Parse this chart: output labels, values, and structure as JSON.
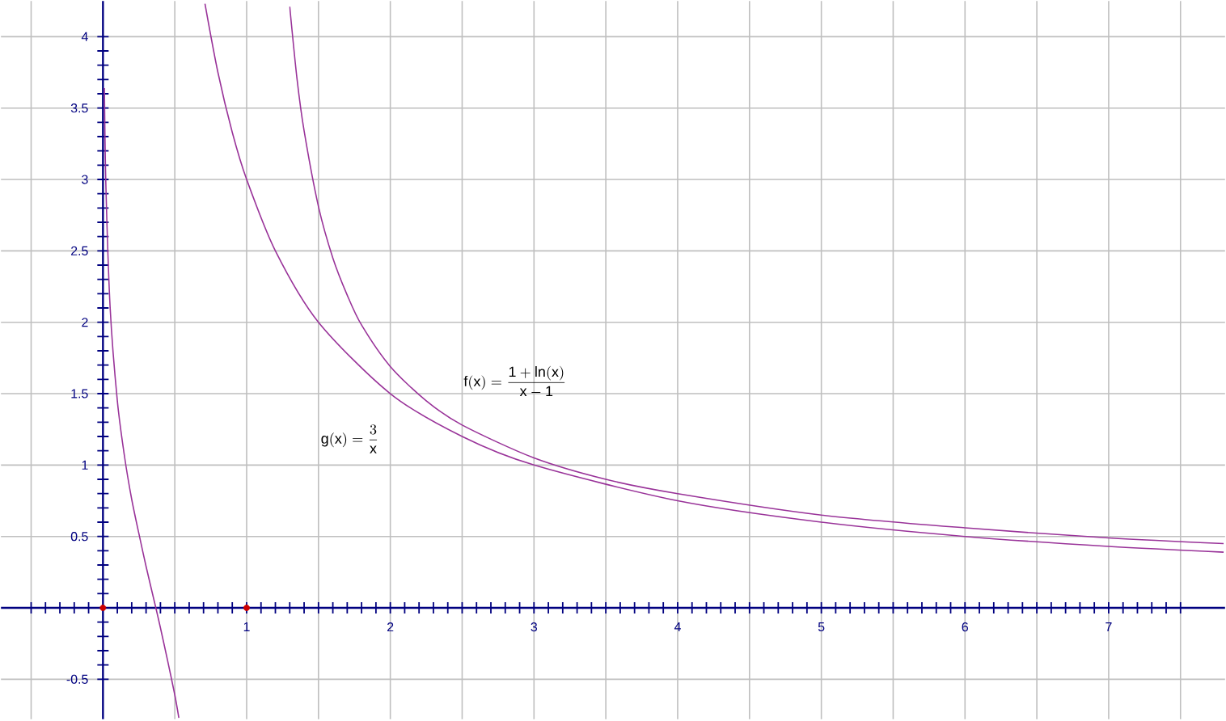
{
  "chart_data": {
    "type": "line",
    "series": [
      {
        "color": "#993399",
        "x": [
          0.01,
          0.02,
          0.05,
          0.1,
          0.15,
          0.2,
          0.25,
          0.3,
          0.368,
          0.4,
          0.45,
          0.5,
          0.528
        ],
        "values": [
          3.64,
          2.97,
          2.1,
          1.45,
          1.06,
          0.76,
          0.52,
          0.29,
          0,
          -0.14,
          -0.37,
          -0.61,
          -0.77
        ]
      },
      {
        "color": "#993399",
        "x": [
          1.3,
          1.35,
          1.4,
          1.5,
          1.6,
          1.7,
          1.8,
          2,
          2.25,
          2.5,
          3,
          3.5,
          4,
          5,
          6,
          7,
          7.8
        ],
        "values": [
          4.21,
          3.71,
          3.34,
          2.81,
          2.45,
          2.19,
          1.98,
          1.69,
          1.45,
          1.28,
          1.05,
          0.9,
          0.8,
          0.65,
          0.56,
          0.49,
          0.45
        ]
      },
      {
        "color": "#993399",
        "x": [
          0.71,
          0.8,
          0.9,
          1,
          1.2,
          1.5,
          2,
          2.5,
          3,
          4,
          5,
          6,
          7,
          7.8
        ],
        "values": [
          4.23,
          3.75,
          3.33,
          3,
          2.5,
          2,
          1.5,
          1.2,
          1,
          0.75,
          0.6,
          0.5,
          0.43,
          0.39
        ]
      },
      {
        "type": "scatter",
        "marker": "circle",
        "color": "#cc0000",
        "x": [
          0,
          1
        ],
        "values": [
          0,
          0
        ]
      }
    ],
    "xlim": [
      -0.71,
      7.81
    ],
    "ylim": [
      -0.78,
      4.25
    ],
    "xticks": [
      {
        "value": -0.5,
        "label": null
      },
      {
        "value": 0,
        "label": null
      },
      {
        "value": 0.5,
        "label": null
      },
      1,
      {
        "value": 1.5,
        "label": null
      },
      2,
      {
        "value": 2.5,
        "label": null
      },
      3,
      {
        "value": 3.5,
        "label": null
      },
      4,
      {
        "value": 4.5,
        "label": null
      },
      5,
      {
        "value": 5.5,
        "label": null
      },
      6,
      {
        "value": 6.5,
        "label": null
      },
      7,
      {
        "value": 7.5,
        "label": null
      }
    ],
    "yticks": [
      -0.5,
      {
        "value": 0,
        "label": null
      },
      0.5,
      1,
      1.5,
      2,
      2.5,
      3,
      3.5,
      4
    ],
    "grid": true,
    "marker": "none",
    "line_style": "solid",
    "annotations": [
      "\\mathrm{f(x)} = \\frac{\\mathrm{1+ln(x)}}{\\mathrm{x-1}}",
      "\\mathrm{g(x)} = \\frac{3}{\\mathrm{x}}"
    ]
  }
}
